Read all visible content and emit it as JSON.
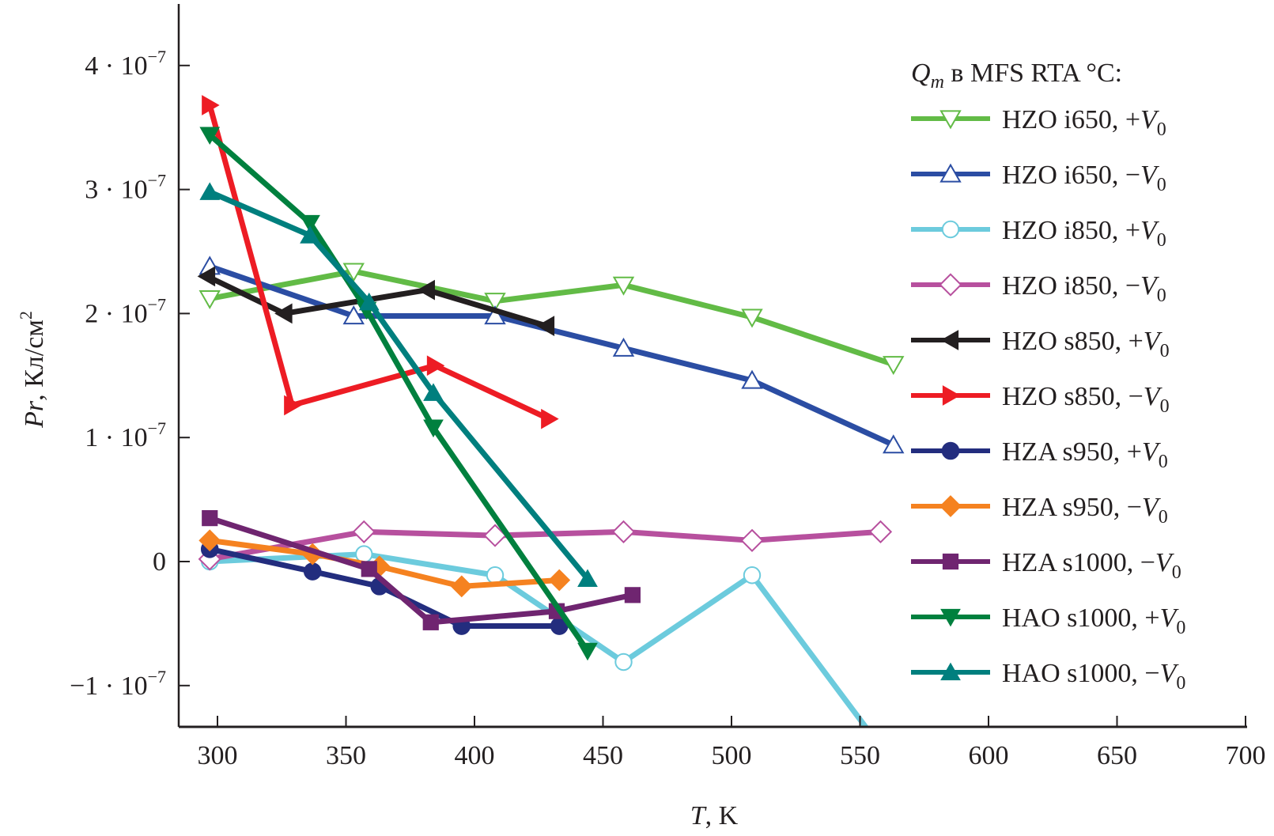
{
  "chart_data": {
    "type": "line",
    "title": "",
    "xlabel": {
      "main": "T",
      "unit": ", K"
    },
    "ylabel": {
      "main": "Pr",
      "unit": ", Кл/см",
      "sup": "2"
    },
    "xlim": [
      283,
      700
    ],
    "ylim": [
      -1.33e-07,
      4.5e-07
    ],
    "grid": false,
    "x_ticks": [
      300,
      350,
      400,
      450,
      500,
      550,
      600,
      650,
      700
    ],
    "y_ticks": [
      {
        "value": 4e-07,
        "mant": "4 · 10",
        "exp": "−7"
      },
      {
        "value": 3e-07,
        "mant": "3 · 10",
        "exp": "−7"
      },
      {
        "value": 2e-07,
        "mant": "2 · 10",
        "exp": "−7"
      },
      {
        "value": 1e-07,
        "mant": "1 · 10",
        "exp": "−7"
      },
      {
        "value": 0,
        "mant": "0",
        "exp": ""
      },
      {
        "value": -1e-07,
        "mant": "−1 · 10",
        "exp": "−7"
      }
    ],
    "legend": {
      "position": "top-right",
      "title": {
        "q": "Q",
        "sub": "m",
        "rest": " в MFS RTA °C:"
      }
    },
    "series": [
      {
        "name": "HZO i650, +V0",
        "label": "HZO i650, ",
        "sign": "+",
        "color": "#62bb46",
        "marker": "triangle-down",
        "filled": false,
        "x": [
          297,
          353,
          408,
          458,
          508,
          563
        ],
        "y": [
          2.12e-07,
          2.34e-07,
          2.1e-07,
          2.23e-07,
          1.97e-07,
          1.59e-07
        ]
      },
      {
        "name": "HZO i650, −V0",
        "label": "HZO i650, ",
        "sign": "−",
        "color": "#2b4da3",
        "marker": "triangle-up",
        "filled": false,
        "x": [
          297,
          353,
          408,
          458,
          508,
          563
        ],
        "y": [
          2.38e-07,
          1.98e-07,
          1.98e-07,
          1.72e-07,
          1.46e-07,
          9.4e-08
        ]
      },
      {
        "name": "HZO i850, +V0",
        "label": "HZO i850, ",
        "sign": "+",
        "color": "#6ccbdd",
        "marker": "circle",
        "filled": false,
        "x": [
          297,
          357,
          408,
          458,
          508,
          560
        ],
        "y": [
          0.0,
          6e-09,
          -1.1e-08,
          -8.1e-08,
          -1.1e-08,
          -1.55e-07
        ]
      },
      {
        "name": "HZO i850, −V0",
        "label": "HZO i850, ",
        "sign": "−",
        "color": "#b7509e",
        "marker": "diamond",
        "filled": false,
        "x": [
          297,
          357,
          408,
          458,
          508,
          558
        ],
        "y": [
          2e-09,
          2.4e-08,
          2.1e-08,
          2.4e-08,
          1.7e-08,
          2.4e-08
        ]
      },
      {
        "name": "HZO s850, +V0",
        "label": "HZO s850, ",
        "sign": "+",
        "color": "#231f20",
        "marker": "triangle-left",
        "filled": true,
        "x": [
          296,
          326,
          381.5,
          428
        ],
        "y": [
          2.3e-07,
          2e-07,
          2.19e-07,
          1.9e-07
        ]
      },
      {
        "name": "HZO s850, −V0",
        "label": "HZO s850, ",
        "sign": "−",
        "color": "#ed1c24",
        "marker": "triangle-right",
        "filled": true,
        "x": [
          297,
          329,
          384.6,
          429
        ],
        "y": [
          3.68e-07,
          1.26e-07,
          1.58e-07,
          1.15e-07
        ]
      },
      {
        "name": "HZA s950, +V0",
        "label": "HZA s950, ",
        "sign": "+",
        "color": "#232d7e",
        "marker": "circle",
        "filled": true,
        "x": [
          297,
          337,
          363,
          395,
          433
        ],
        "y": [
          1e-08,
          -8e-09,
          -2e-08,
          -5.2e-08,
          -5.2e-08
        ]
      },
      {
        "name": "HZA s950, −V0",
        "label": "HZA s950, ",
        "sign": "−",
        "color": "#f58220",
        "marker": "diamond",
        "filled": true,
        "x": [
          297,
          337,
          363,
          395,
          433
        ],
        "y": [
          1.7e-08,
          6e-09,
          -4e-09,
          -2e-08,
          -1.5e-08
        ]
      },
      {
        "name": "HZA s1000, −V0",
        "label": "HZA s1000, ",
        "sign": "−",
        "color": "#6f2570",
        "marker": "square",
        "filled": true,
        "x": [
          297,
          359,
          383,
          432,
          461.5
        ],
        "y": [
          3.5e-08,
          -6e-09,
          -4.9e-08,
          -4e-08,
          -2.7e-08
        ]
      },
      {
        "name": "HAO s1000, +V0",
        "label": "HAO s1000, ",
        "sign": "+",
        "color": "#00803e",
        "marker": "triangle-down",
        "filled": true,
        "x": [
          297,
          336,
          358,
          384,
          444
        ],
        "y": [
          3.44e-07,
          2.73e-07,
          2.03e-07,
          1.08e-07,
          -7.2e-08
        ]
      },
      {
        "name": "HAO s1000, −V0",
        "label": "HAO s1000, ",
        "sign": "−",
        "color": "#007f7e",
        "marker": "triangle-up",
        "filled": true,
        "x": [
          297,
          336,
          359,
          384,
          444
        ],
        "y": [
          2.98e-07,
          2.63e-07,
          2.09e-07,
          1.36e-07,
          -1.4e-08
        ]
      }
    ],
    "v_label": "V",
    "v_sub": "0"
  }
}
